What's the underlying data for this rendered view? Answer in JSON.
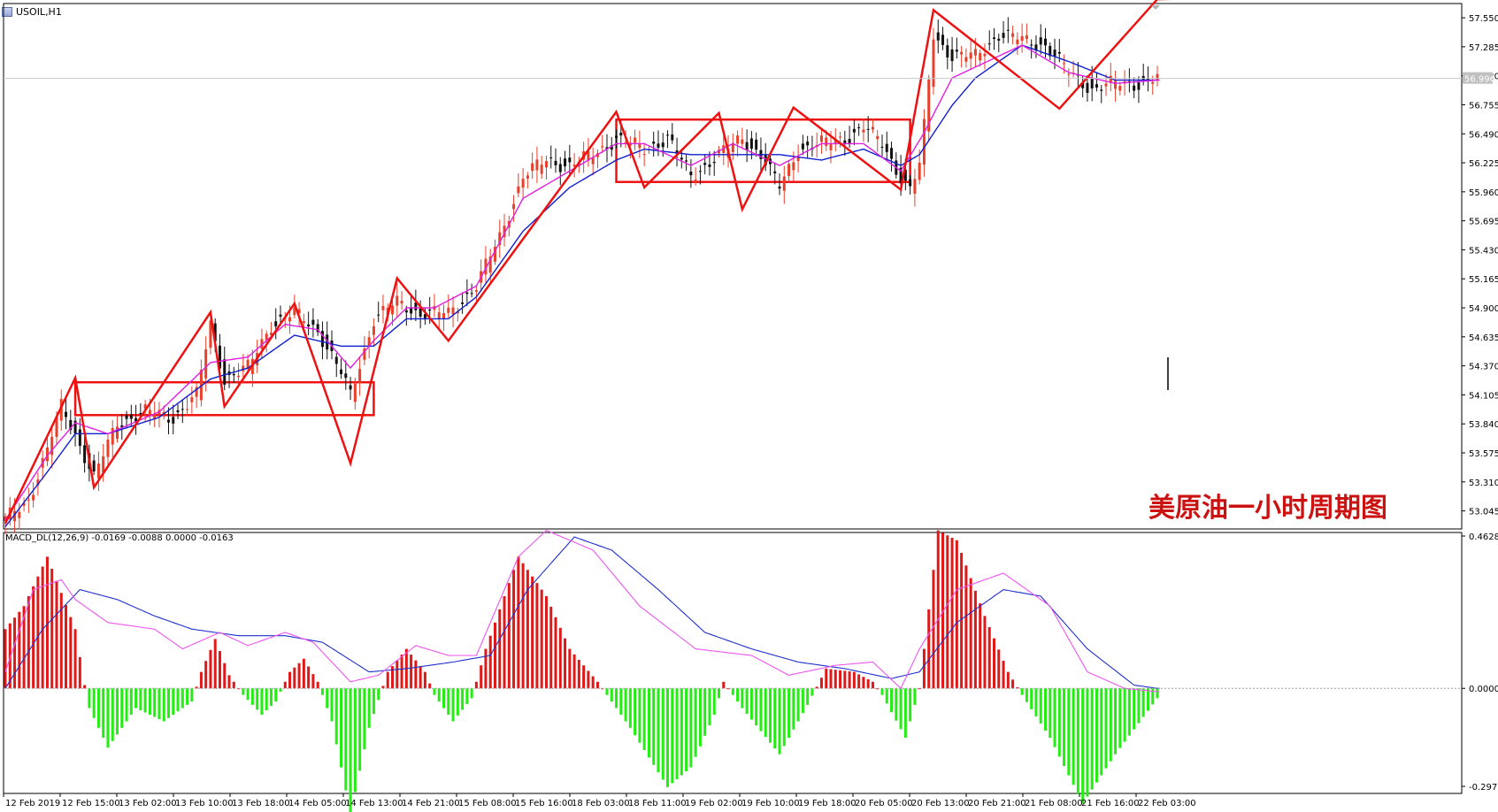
{
  "header": {
    "symbol_label": "USOIL,H1"
  },
  "watermark": {
    "text": "美原油一小时周期图"
  },
  "colors": {
    "bull_candle": "#e8402a",
    "bear_candle": "#111111",
    "ma_fast": "#e020e0",
    "ma_slow": "#1020d0",
    "pattern_lines": "#ee1111",
    "macd_pos": "#e01818",
    "macd_neg": "#22ee11",
    "macd_line": "#ee55ee",
    "signal_line": "#2030cc",
    "price_line": "#c8c8c8"
  },
  "chart_data": [
    {
      "type": "candlestick",
      "title": "USOIL,H1",
      "current_price_label": "56.996",
      "ylim": [
        52.88,
        57.68
      ],
      "price_ticks": [
        "57.550",
        "57.285",
        "57.020",
        "56.755",
        "56.490",
        "56.225",
        "55.960",
        "55.695",
        "55.430",
        "55.165",
        "54.900",
        "54.635",
        "54.370",
        "54.105",
        "53.840",
        "53.575",
        "53.310",
        "53.045"
      ],
      "x_labels": [
        "12 Feb 2019",
        "12 Feb 15:00",
        "13 Feb 02:00",
        "13 Feb 10:00",
        "13 Feb 18:00",
        "14 Feb 05:00",
        "14 Feb 13:00",
        "14 Feb 21:00",
        "15 Feb 08:00",
        "15 Feb 16:00",
        "18 Feb 03:00",
        "18 Feb 11:00",
        "19 Feb 02:00",
        "19 Feb 10:00",
        "19 Feb 18:00",
        "20 Feb 05:00",
        "20 Feb 13:00",
        "20 Feb 21:00",
        "21 Feb 08:00",
        "21 Feb 16:00",
        "22 Feb 03:00"
      ],
      "price_anchors": [
        [
          0,
          52.96
        ],
        [
          5,
          53.15
        ],
        [
          9,
          53.6
        ],
        [
          12,
          54.0
        ],
        [
          15,
          53.75
        ],
        [
          19,
          53.35
        ],
        [
          24,
          53.85
        ],
        [
          30,
          53.95
        ],
        [
          36,
          53.9
        ],
        [
          41,
          54.1
        ],
        [
          44,
          54.75
        ],
        [
          47,
          54.25
        ],
        [
          52,
          54.35
        ],
        [
          57,
          54.75
        ],
        [
          62,
          54.85
        ],
        [
          67,
          54.7
        ],
        [
          72,
          54.3
        ],
        [
          74,
          54.1
        ],
        [
          79,
          54.8
        ],
        [
          84,
          54.95
        ],
        [
          89,
          54.85
        ],
        [
          95,
          54.85
        ],
        [
          101,
          55.1
        ],
        [
          106,
          55.55
        ],
        [
          111,
          56.1
        ],
        [
          116,
          56.25
        ],
        [
          121,
          56.2
        ],
        [
          126,
          56.3
        ],
        [
          131,
          56.45
        ],
        [
          137,
          56.35
        ],
        [
          142,
          56.45
        ],
        [
          147,
          56.1
        ],
        [
          153,
          56.3
        ],
        [
          158,
          56.45
        ],
        [
          162,
          56.3
        ],
        [
          166,
          56.0
        ],
        [
          170,
          56.35
        ],
        [
          175,
          56.4
        ],
        [
          180,
          56.45
        ],
        [
          184,
          56.55
        ],
        [
          188,
          56.4
        ],
        [
          192,
          56.1
        ],
        [
          194,
          55.98
        ],
        [
          196,
          56.2
        ],
        [
          197,
          56.55
        ],
        [
          199,
          57.4
        ],
        [
          203,
          57.2
        ],
        [
          208,
          57.2
        ],
        [
          213,
          57.4
        ],
        [
          218,
          57.35
        ],
        [
          223,
          57.3
        ],
        [
          228,
          57.05
        ],
        [
          233,
          56.9
        ],
        [
          238,
          56.95
        ],
        [
          243,
          56.95
        ],
        [
          247,
          57.0
        ]
      ],
      "ma_fast_anchors": [
        [
          0,
          52.96
        ],
        [
          9,
          53.55
        ],
        [
          15,
          53.85
        ],
        [
          22,
          53.75
        ],
        [
          33,
          53.95
        ],
        [
          44,
          54.4
        ],
        [
          52,
          54.45
        ],
        [
          60,
          54.75
        ],
        [
          67,
          54.7
        ],
        [
          74,
          54.35
        ],
        [
          79,
          54.6
        ],
        [
          86,
          54.9
        ],
        [
          92,
          54.9
        ],
        [
          101,
          55.1
        ],
        [
          111,
          55.9
        ],
        [
          121,
          56.15
        ],
        [
          131,
          56.4
        ],
        [
          137,
          56.4
        ],
        [
          147,
          56.2
        ],
        [
          156,
          56.4
        ],
        [
          166,
          56.2
        ],
        [
          175,
          56.4
        ],
        [
          184,
          56.4
        ],
        [
          192,
          56.15
        ],
        [
          197,
          56.5
        ],
        [
          203,
          57.0
        ],
        [
          208,
          57.1
        ],
        [
          218,
          57.3
        ],
        [
          228,
          57.05
        ],
        [
          238,
          56.95
        ],
        [
          247,
          56.98
        ]
      ],
      "ma_slow_anchors": [
        [
          0,
          52.9
        ],
        [
          9,
          53.4
        ],
        [
          15,
          53.75
        ],
        [
          22,
          53.75
        ],
        [
          33,
          53.9
        ],
        [
          44,
          54.25
        ],
        [
          52,
          54.35
        ],
        [
          62,
          54.65
        ],
        [
          72,
          54.55
        ],
        [
          79,
          54.55
        ],
        [
          86,
          54.8
        ],
        [
          95,
          54.8
        ],
        [
          101,
          55.0
        ],
        [
          111,
          55.6
        ],
        [
          121,
          56.0
        ],
        [
          131,
          56.25
        ],
        [
          137,
          56.35
        ],
        [
          147,
          56.3
        ],
        [
          158,
          56.3
        ],
        [
          166,
          56.3
        ],
        [
          175,
          56.25
        ],
        [
          184,
          56.35
        ],
        [
          192,
          56.2
        ],
        [
          196,
          56.3
        ],
        [
          203,
          56.75
        ],
        [
          208,
          57.0
        ],
        [
          218,
          57.3
        ],
        [
          228,
          57.15
        ],
        [
          238,
          56.98
        ],
        [
          247,
          56.98
        ]
      ],
      "zigzag": [
        [
          52.93,
          0
        ],
        [
          54.26,
          15
        ],
        [
          53.26,
          19
        ],
        [
          54.86,
          44
        ],
        [
          54.0,
          47
        ],
        [
          54.94,
          62
        ],
        [
          53.48,
          74
        ],
        [
          55.17,
          84
        ],
        [
          54.6,
          95
        ],
        [
          56.69,
          131
        ],
        [
          56.0,
          137
        ],
        [
          56.68,
          153
        ],
        [
          55.8,
          158
        ],
        [
          56.73,
          169
        ],
        [
          55.98,
          192
        ],
        [
          57.62,
          199
        ],
        [
          56.72,
          226
        ],
        [
          57.72,
          247
        ]
      ],
      "zigzag_extension": [
        [
          57.72,
          265
        ]
      ],
      "zones": [
        {
          "x_from": 15,
          "x_to": 79,
          "price_low": 53.92,
          "price_high": 54.22
        },
        {
          "x_from": 131,
          "x_to": 194,
          "price_low": 56.05,
          "price_high": 56.62
        }
      ],
      "bar_count": 248
    },
    {
      "type": "bar",
      "title": "MACD_DL(12,26,9) -0.0169 -0.0088 0.0000 -0.0163",
      "ylim": [
        -0.2976,
        0.4628
      ],
      "y_ticks": [
        "0.4628",
        "0.0000",
        "-0.2976"
      ],
      "histogram_anchors": [
        [
          0,
          0.18
        ],
        [
          4,
          0.25
        ],
        [
          9,
          0.4
        ],
        [
          15,
          0.18
        ],
        [
          17,
          0.01
        ],
        [
          18,
          -0.06
        ],
        [
          22,
          -0.18
        ],
        [
          28,
          -0.06
        ],
        [
          34,
          -0.1
        ],
        [
          40,
          -0.04
        ],
        [
          42,
          0.05
        ],
        [
          45,
          0.15
        ],
        [
          48,
          0.04
        ],
        [
          51,
          -0.02
        ],
        [
          55,
          -0.08
        ],
        [
          58,
          -0.04
        ],
        [
          61,
          0.05
        ],
        [
          64,
          0.09
        ],
        [
          67,
          0.02
        ],
        [
          70,
          -0.1
        ],
        [
          74,
          -0.38
        ],
        [
          78,
          -0.12
        ],
        [
          82,
          0.05
        ],
        [
          86,
          0.12
        ],
        [
          90,
          0.05
        ],
        [
          92,
          -0.02
        ],
        [
          96,
          -0.1
        ],
        [
          100,
          -0.03
        ],
        [
          103,
          0.12
        ],
        [
          110,
          0.4
        ],
        [
          116,
          0.28
        ],
        [
          121,
          0.12
        ],
        [
          127,
          0.02
        ],
        [
          129,
          -0.02
        ],
        [
          134,
          -0.12
        ],
        [
          142,
          -0.3
        ],
        [
          147,
          -0.24
        ],
        [
          152,
          -0.08
        ],
        [
          154,
          0.02
        ],
        [
          158,
          -0.06
        ],
        [
          166,
          -0.2
        ],
        [
          172,
          -0.05
        ],
        [
          176,
          0.06
        ],
        [
          182,
          0.05
        ],
        [
          186,
          0.02
        ],
        [
          188,
          -0.02
        ],
        [
          193,
          -0.15
        ],
        [
          196,
          0.0
        ],
        [
          200,
          0.48
        ],
        [
          204,
          0.45
        ],
        [
          210,
          0.22
        ],
        [
          215,
          0.05
        ],
        [
          218,
          -0.02
        ],
        [
          224,
          -0.15
        ],
        [
          231,
          -0.35
        ],
        [
          238,
          -0.2
        ],
        [
          247,
          -0.03
        ]
      ],
      "macd_line_anchors": [
        [
          0,
          0.05
        ],
        [
          6,
          0.3
        ],
        [
          12,
          0.33
        ],
        [
          15,
          0.27
        ],
        [
          22,
          0.2
        ],
        [
          32,
          0.18
        ],
        [
          38,
          0.12
        ],
        [
          46,
          0.17
        ],
        [
          52,
          0.13
        ],
        [
          60,
          0.17
        ],
        [
          66,
          0.14
        ],
        [
          74,
          0.02
        ],
        [
          80,
          0.04
        ],
        [
          88,
          0.13
        ],
        [
          95,
          0.1
        ],
        [
          101,
          0.1
        ],
        [
          110,
          0.4
        ],
        [
          116,
          0.48
        ],
        [
          126,
          0.42
        ],
        [
          136,
          0.25
        ],
        [
          148,
          0.12
        ],
        [
          160,
          0.1
        ],
        [
          168,
          0.04
        ],
        [
          178,
          0.07
        ],
        [
          186,
          0.08
        ],
        [
          192,
          0.0
        ],
        [
          196,
          0.12
        ],
        [
          204,
          0.3
        ],
        [
          214,
          0.35
        ],
        [
          224,
          0.25
        ],
        [
          232,
          0.05
        ],
        [
          240,
          0.0
        ],
        [
          247,
          -0.01
        ]
      ],
      "signal_line_anchors": [
        [
          0,
          0.0
        ],
        [
          8,
          0.18
        ],
        [
          16,
          0.3
        ],
        [
          24,
          0.27
        ],
        [
          32,
          0.22
        ],
        [
          40,
          0.18
        ],
        [
          50,
          0.16
        ],
        [
          60,
          0.16
        ],
        [
          68,
          0.14
        ],
        [
          78,
          0.05
        ],
        [
          86,
          0.06
        ],
        [
          96,
          0.08
        ],
        [
          104,
          0.1
        ],
        [
          112,
          0.3
        ],
        [
          122,
          0.46
        ],
        [
          130,
          0.42
        ],
        [
          140,
          0.3
        ],
        [
          150,
          0.17
        ],
        [
          160,
          0.12
        ],
        [
          170,
          0.08
        ],
        [
          180,
          0.06
        ],
        [
          190,
          0.03
        ],
        [
          196,
          0.05
        ],
        [
          204,
          0.2
        ],
        [
          214,
          0.3
        ],
        [
          222,
          0.28
        ],
        [
          232,
          0.12
        ],
        [
          242,
          0.01
        ],
        [
          247,
          0.0
        ]
      ]
    }
  ]
}
